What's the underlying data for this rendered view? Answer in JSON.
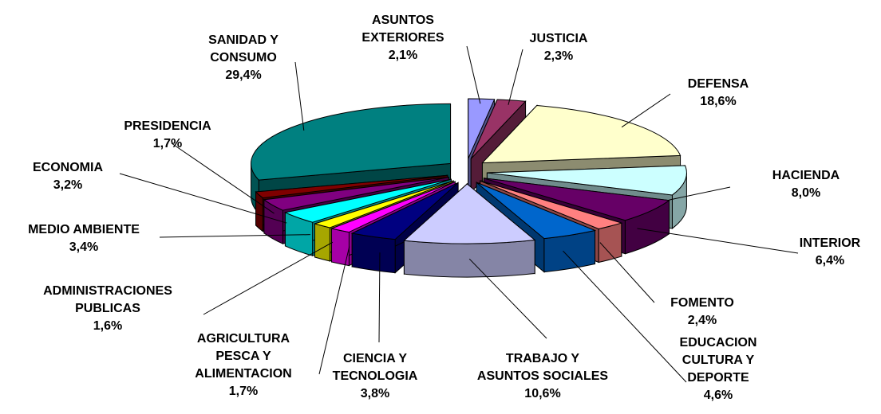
{
  "chart_data": {
    "type": "pie3d",
    "categories": [
      "ASUNTOS\nEXTERIORES",
      "JUSTICIA",
      "DEFENSA",
      "HACIENDA",
      "INTERIOR",
      "FOMENTO",
      "EDUCACION\nCULTURA Y\nDEPORTE",
      "TRABAJO Y\nASUNTOS SOCIALES",
      "CIENCIA Y\nTECNOLOGIA",
      "AGRICULTURA\nPESCA Y\nALIMENTACION",
      "ADMINISTRACIONES\nPUBLICAS",
      "MEDIO AMBIENTE",
      "ECONOMIA",
      "PRESIDENCIA",
      "SANIDAD Y\nCONSUMO"
    ],
    "values": [
      2.1,
      2.3,
      18.6,
      8.0,
      6.4,
      2.4,
      4.6,
      10.6,
      3.8,
      1.7,
      1.6,
      3.4,
      3.2,
      1.7,
      29.4
    ],
    "value_labels": [
      "2,1%",
      "2,3%",
      "18,6%",
      "8,0%",
      "6,4%",
      "2,4%",
      "4,6%",
      "10,6%",
      "3,8%",
      "1,7%",
      "1,6%",
      "3,4%",
      "3,2%",
      "1,7%",
      "29,4%"
    ],
    "colors": [
      "#9999ff",
      "#993366",
      "#ffffcc",
      "#ccffff",
      "#660066",
      "#ff8080",
      "#0066cc",
      "#ccccff",
      "#000080",
      "#ff00ff",
      "#ffff00",
      "#00ffff",
      "#800080",
      "#800000",
      "#008080"
    ]
  }
}
